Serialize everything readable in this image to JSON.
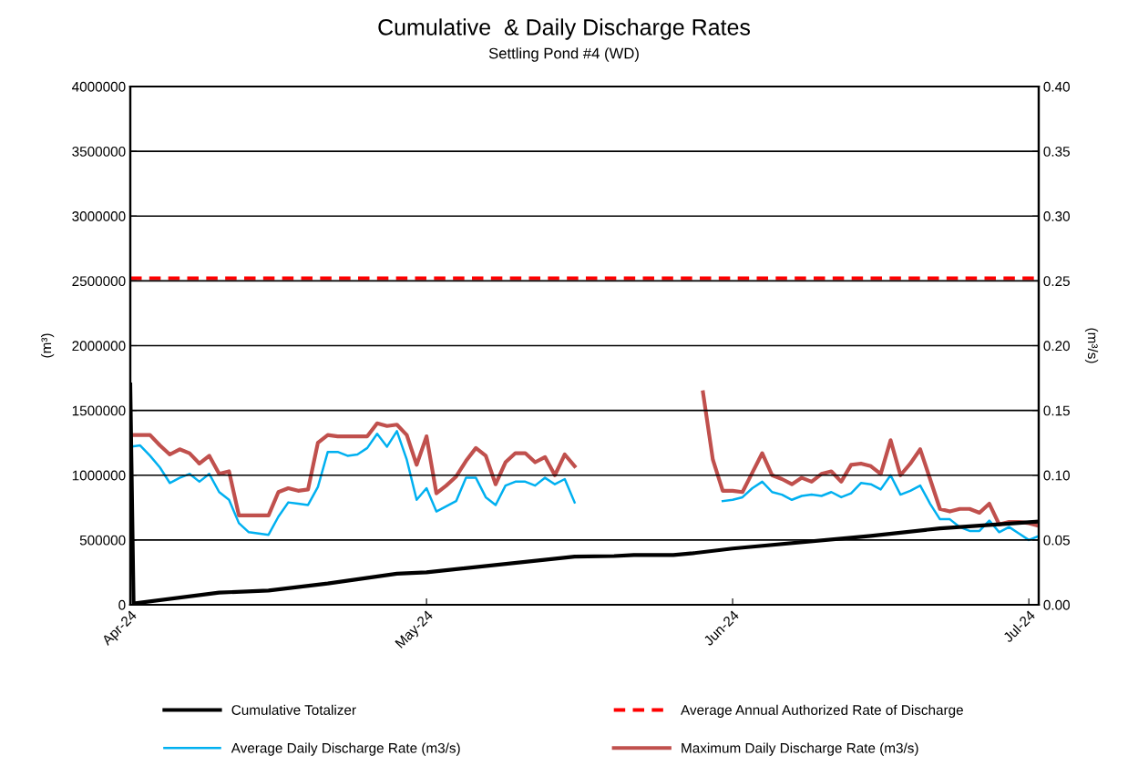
{
  "chart_data": {
    "type": "line",
    "title": "Cumulative  & Daily Discharge Rates",
    "subtitle": "Settling Pond #4 (WD)",
    "ylabel": "(m³)",
    "y2label": "(m³/s)",
    "xlim": [
      "2024-04-01",
      "2024-07-02"
    ],
    "xticks": [
      {
        "value": "2024-04-01",
        "label": "Apr-24"
      },
      {
        "value": "2024-05-01",
        "label": "May-24"
      },
      {
        "value": "2024-06-01",
        "label": "Jun-24"
      },
      {
        "value": "2024-07-01",
        "label": "Jul-24"
      }
    ],
    "ylim": [
      0,
      4000000
    ],
    "yticks": [
      0,
      500000,
      1000000,
      1500000,
      2000000,
      2500000,
      3000000,
      3500000,
      4000000
    ],
    "y2lim": [
      0,
      0.4
    ],
    "y2ticks": [
      {
        "value": 0,
        "label": "0.00"
      },
      {
        "value": 0.05,
        "label": "0.05"
      },
      {
        "value": 0.1,
        "label": "0.10"
      },
      {
        "value": 0.15,
        "label": "0.15"
      },
      {
        "value": 0.2,
        "label": "0.20"
      },
      {
        "value": 0.25,
        "label": "0.25"
      },
      {
        "value": 0.3,
        "label": "0.30"
      },
      {
        "value": 0.35,
        "label": "0.35"
      },
      {
        "value": 0.4,
        "label": "0.40"
      }
    ],
    "grid": "y",
    "legend": "bottom",
    "marker": "none",
    "series": [
      {
        "name": "Cumulative Totalizer",
        "color": "#000000",
        "line_style": "solid",
        "x": [
          "2024-04-01",
          "2024-04-01T08:00",
          "2024-04-10",
          "2024-04-15",
          "2024-04-21",
          "2024-04-28",
          "2024-05-01",
          "2024-05-16",
          "2024-05-20",
          "2024-05-22",
          "2024-05-26",
          "2024-05-28",
          "2024-06-01",
          "2024-06-15",
          "2024-06-22",
          "2024-07-02"
        ],
        "values": [
          1700000,
          10000,
          94000,
          110000,
          164000,
          240000,
          250000,
          372000,
          376000,
          384000,
          384000,
          398000,
          434000,
          532000,
          590000,
          642000
        ]
      },
      {
        "name": "Average Annual Authorized Rate of Discharge",
        "color": "#ff0000",
        "line_style": "dashed",
        "axis": "y2",
        "x": [
          "2024-04-01",
          "2024-07-02"
        ],
        "values": [
          0.252,
          0.252
        ]
      },
      {
        "name": "Average Daily Discharge Rate (m3/s)",
        "color": "#00b0f0",
        "line_style": "solid",
        "axis": "y2",
        "x": [
          "2024-04-01",
          "2024-04-02",
          "2024-04-03",
          "2024-04-04",
          "2024-04-05",
          "2024-04-06",
          "2024-04-07",
          "2024-04-08",
          "2024-04-09",
          "2024-04-10",
          "2024-04-11",
          "2024-04-12",
          "2024-04-13",
          "2024-04-14",
          "2024-04-15",
          "2024-04-16",
          "2024-04-17",
          "2024-04-18",
          "2024-04-19",
          "2024-04-20",
          "2024-04-21",
          "2024-04-22",
          "2024-04-23",
          "2024-04-24",
          "2024-04-25",
          "2024-04-26",
          "2024-04-27",
          "2024-04-28",
          "2024-04-29",
          "2024-04-30",
          "2024-05-01",
          "2024-05-02",
          "2024-05-03",
          "2024-05-04",
          "2024-05-05",
          "2024-05-06",
          "2024-05-07",
          "2024-05-08",
          "2024-05-09",
          "2024-05-10",
          "2024-05-11",
          "2024-05-12",
          "2024-05-13",
          "2024-05-14",
          "2024-05-15",
          "2024-05-16",
          "2024-05-17",
          "2024-05-29",
          "2024-05-30",
          "2024-05-31",
          "2024-06-01",
          "2024-06-02",
          "2024-06-03",
          "2024-06-04",
          "2024-06-05",
          "2024-06-06",
          "2024-06-07",
          "2024-06-08",
          "2024-06-09",
          "2024-06-10",
          "2024-06-11",
          "2024-06-12",
          "2024-06-13",
          "2024-06-14",
          "2024-06-15",
          "2024-06-16",
          "2024-06-17",
          "2024-06-18",
          "2024-06-19",
          "2024-06-20",
          "2024-06-21",
          "2024-06-22",
          "2024-06-23",
          "2024-06-24",
          "2024-06-25",
          "2024-06-26",
          "2024-06-27",
          "2024-06-28",
          "2024-06-29",
          "2024-06-30",
          "2024-07-01",
          "2024-07-02"
        ],
        "values": [
          0.122,
          0.123,
          0.115,
          0.106,
          0.094,
          0.098,
          0.101,
          0.095,
          0.101,
          0.087,
          0.081,
          0.063,
          0.056,
          0.055,
          0.054,
          0.068,
          0.079,
          0.078,
          0.077,
          0.091,
          0.118,
          0.118,
          0.115,
          0.116,
          0.121,
          0.132,
          0.122,
          0.134,
          0.112,
          0.081,
          0.09,
          0.072,
          0.076,
          0.08,
          0.098,
          0.098,
          0.083,
          0.077,
          0.092,
          0.095,
          0.095,
          0.092,
          0.098,
          0.093,
          0.097,
          0.079,
          null,
          null,
          null,
          0.08,
          0.081,
          0.083,
          0.09,
          0.095,
          0.087,
          0.085,
          0.081,
          0.084,
          0.085,
          0.084,
          0.087,
          0.083,
          0.086,
          0.094,
          0.093,
          0.089,
          0.1,
          0.085,
          0.088,
          0.092,
          0.078,
          0.066,
          0.066,
          0.06,
          0.057,
          0.057,
          0.065,
          0.056,
          0.06,
          0.055,
          0.05,
          0.053
        ]
      },
      {
        "name": "Maximum Daily Discharge Rate (m3/s)",
        "color": "#c0504d",
        "line_style": "solid",
        "axis": "y2",
        "x": [
          "2024-04-01",
          "2024-04-02",
          "2024-04-03",
          "2024-04-04",
          "2024-04-05",
          "2024-04-06",
          "2024-04-07",
          "2024-04-08",
          "2024-04-09",
          "2024-04-10",
          "2024-04-11",
          "2024-04-12",
          "2024-04-13",
          "2024-04-14",
          "2024-04-15",
          "2024-04-16",
          "2024-04-17",
          "2024-04-18",
          "2024-04-19",
          "2024-04-20",
          "2024-04-21",
          "2024-04-22",
          "2024-04-23",
          "2024-04-24",
          "2024-04-25",
          "2024-04-26",
          "2024-04-27",
          "2024-04-28",
          "2024-04-29",
          "2024-04-30",
          "2024-05-01",
          "2024-05-02",
          "2024-05-03",
          "2024-05-04",
          "2024-05-05",
          "2024-05-06",
          "2024-05-07",
          "2024-05-08",
          "2024-05-09",
          "2024-05-10",
          "2024-05-11",
          "2024-05-12",
          "2024-05-13",
          "2024-05-14",
          "2024-05-15",
          "2024-05-16",
          "2024-05-17",
          "2024-05-29",
          "2024-05-30",
          "2024-05-31",
          "2024-06-01",
          "2024-06-02",
          "2024-06-03",
          "2024-06-04",
          "2024-06-05",
          "2024-06-06",
          "2024-06-07",
          "2024-06-08",
          "2024-06-09",
          "2024-06-10",
          "2024-06-11",
          "2024-06-12",
          "2024-06-13",
          "2024-06-14",
          "2024-06-15",
          "2024-06-16",
          "2024-06-17",
          "2024-06-18",
          "2024-06-19",
          "2024-06-20",
          "2024-06-21",
          "2024-06-22",
          "2024-06-23",
          "2024-06-24",
          "2024-06-25",
          "2024-06-26",
          "2024-06-27",
          "2024-06-28",
          "2024-06-29",
          "2024-06-30",
          "2024-07-01",
          "2024-07-02"
        ],
        "values": [
          0.131,
          0.131,
          0.131,
          0.123,
          0.116,
          0.12,
          0.117,
          0.109,
          0.115,
          0.101,
          0.103,
          0.069,
          0.069,
          0.069,
          0.069,
          0.087,
          0.09,
          0.088,
          0.089,
          0.125,
          0.131,
          0.13,
          0.13,
          0.13,
          0.13,
          0.14,
          0.138,
          0.139,
          0.131,
          0.108,
          0.13,
          0.086,
          0.092,
          0.099,
          0.111,
          0.121,
          0.115,
          0.093,
          0.11,
          0.117,
          0.117,
          0.11,
          0.114,
          0.1,
          0.116,
          0.107,
          null,
          0.164,
          0.112,
          0.088,
          0.088,
          0.087,
          0.102,
          0.117,
          0.1,
          0.097,
          0.093,
          0.098,
          0.095,
          0.101,
          0.103,
          0.095,
          0.108,
          0.109,
          0.107,
          0.101,
          0.127,
          0.1,
          0.109,
          0.12,
          0.097,
          0.074,
          0.072,
          0.074,
          0.074,
          0.071,
          0.078,
          0.062,
          0.064,
          0.064,
          0.063,
          0.061
        ]
      }
    ]
  }
}
